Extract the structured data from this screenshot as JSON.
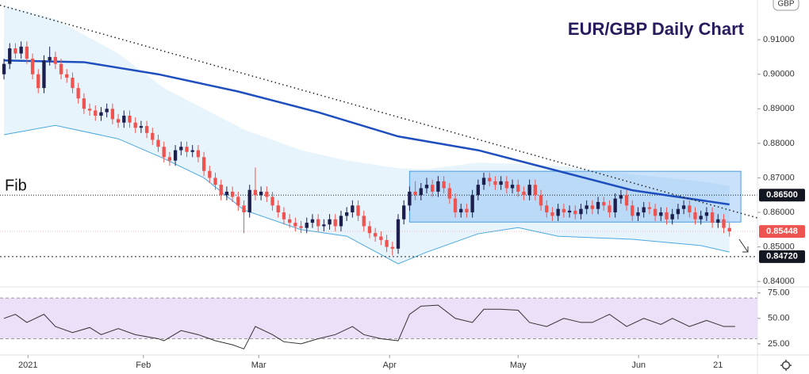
{
  "chart_data": {
    "type": "candlestick",
    "title": "EUR/GBP Daily Chart",
    "currency": "GBP",
    "annotation": "Fib",
    "up_color": "#1c1f4e",
    "down_color": "#ef5350",
    "xlim": [
      -0.7,
      131.9
    ],
    "ylim": [
      0.8389,
      0.9215
    ],
    "yticks": [
      {
        "value": 0.91,
        "label": "0.91000"
      },
      {
        "value": 0.9,
        "label": "0.90000"
      },
      {
        "value": 0.89,
        "label": "0.89000"
      },
      {
        "value": 0.88,
        "label": "0.88000"
      },
      {
        "value": 0.87,
        "label": "0.87000"
      },
      {
        "value": 0.86,
        "label": "0.86000"
      },
      {
        "value": 0.85,
        "label": "0.85000"
      },
      {
        "value": 0.84,
        "label": "0.84000"
      }
    ],
    "xticks": [
      {
        "value": 4.2,
        "label": "2021"
      },
      {
        "value": 24.4,
        "label": "Feb"
      },
      {
        "value": 44.6,
        "label": "Mar"
      },
      {
        "value": 67.5,
        "label": "Apr"
      },
      {
        "value": 90,
        "label": "May"
      },
      {
        "value": 111.1,
        "label": "Jun"
      },
      {
        "value": 125,
        "label": "21"
      }
    ],
    "series": [
      {
        "open": [
          0.9,
          0.903,
          0.9075,
          0.906,
          0.908,
          0.9045,
          0.9,
          0.896,
          0.904,
          0.905,
          0.903,
          0.9,
          0.899,
          0.896,
          0.893,
          0.89,
          0.8895,
          0.888,
          0.889,
          0.89,
          0.887,
          0.886,
          0.888,
          0.886,
          0.8845,
          0.885,
          0.883,
          0.881,
          0.879,
          0.876,
          0.875,
          0.878,
          0.879,
          0.8775,
          0.878,
          0.876,
          0.872,
          0.87,
          0.868,
          0.865,
          0.866,
          0.8645,
          0.862,
          0.86,
          0.8665,
          0.865,
          0.866,
          0.8645,
          0.862,
          0.86,
          0.858,
          0.857,
          0.856,
          0.8555,
          0.857,
          0.858,
          0.856,
          0.8565,
          0.858,
          0.856,
          0.859,
          0.86,
          0.862,
          0.859,
          0.856,
          0.854,
          0.853,
          0.852,
          0.85,
          0.8495,
          0.858,
          0.862,
          0.866,
          0.865,
          0.867,
          0.868,
          0.866,
          0.869,
          0.867,
          0.864,
          0.86,
          0.861,
          0.86,
          0.865,
          0.868,
          0.87,
          0.869,
          0.868,
          0.869,
          0.867,
          0.868,
          0.866,
          0.865,
          0.868,
          0.865,
          0.862,
          0.86,
          0.859,
          0.861,
          0.86,
          0.8605,
          0.8595,
          0.861,
          0.862,
          0.861,
          0.863,
          0.862,
          0.86,
          0.864,
          0.865,
          0.862,
          0.859,
          0.86,
          0.8615,
          0.861,
          0.859,
          0.86,
          0.858,
          0.8595,
          0.861,
          0.862,
          0.86,
          0.858,
          0.859,
          0.86,
          0.857,
          0.858,
          0.8555
        ],
        "high": [
          0.9045,
          0.909,
          0.909,
          0.9095,
          0.9095,
          0.906,
          0.9015,
          0.9055,
          0.908,
          0.9065,
          0.9045,
          0.9015,
          0.9005,
          0.8975,
          0.8945,
          0.8915,
          0.891,
          0.8905,
          0.8915,
          0.8915,
          0.8885,
          0.8895,
          0.8895,
          0.8875,
          0.8865,
          0.8865,
          0.8845,
          0.8825,
          0.8805,
          0.8775,
          0.8795,
          0.8805,
          0.8805,
          0.8795,
          0.8795,
          0.8775,
          0.8735,
          0.8715,
          0.8695,
          0.8675,
          0.8675,
          0.866,
          0.8635,
          0.868,
          0.873,
          0.8675,
          0.8675,
          0.866,
          0.8635,
          0.8615,
          0.8595,
          0.8585,
          0.8575,
          0.8585,
          0.8595,
          0.8595,
          0.858,
          0.8595,
          0.8595,
          0.8605,
          0.8615,
          0.8635,
          0.8635,
          0.8605,
          0.8575,
          0.8555,
          0.8545,
          0.8535,
          0.8515,
          0.8595,
          0.8635,
          0.8675,
          0.869,
          0.8685,
          0.87,
          0.8695,
          0.8705,
          0.8705,
          0.8685,
          0.8655,
          0.8625,
          0.8625,
          0.8665,
          0.8695,
          0.8715,
          0.8715,
          0.8705,
          0.8705,
          0.8705,
          0.8695,
          0.8695,
          0.8675,
          0.8695,
          0.8695,
          0.8665,
          0.8635,
          0.8615,
          0.8625,
          0.8625,
          0.862,
          0.862,
          0.8625,
          0.8635,
          0.8635,
          0.8645,
          0.8645,
          0.8635,
          0.8655,
          0.8665,
          0.8665,
          0.8635,
          0.8615,
          0.863,
          0.863,
          0.8625,
          0.8615,
          0.8615,
          0.861,
          0.8625,
          0.8635,
          0.8635,
          0.8615,
          0.8605,
          0.8615,
          0.8615,
          0.8595,
          0.8595,
          0.857
        ],
        "low": [
          0.8985,
          0.9015,
          0.9045,
          0.9045,
          0.903,
          0.8985,
          0.8945,
          0.8945,
          0.9025,
          0.9015,
          0.8985,
          0.8975,
          0.8945,
          0.8915,
          0.8885,
          0.888,
          0.8865,
          0.8865,
          0.8875,
          0.8855,
          0.8845,
          0.8845,
          0.8845,
          0.883,
          0.883,
          0.8815,
          0.8795,
          0.8775,
          0.8745,
          0.8735,
          0.8735,
          0.8765,
          0.876,
          0.876,
          0.8745,
          0.8705,
          0.8685,
          0.8665,
          0.8635,
          0.8635,
          0.863,
          0.8605,
          0.854,
          0.8585,
          0.8635,
          0.8635,
          0.863,
          0.8605,
          0.8585,
          0.8565,
          0.8555,
          0.8545,
          0.854,
          0.854,
          0.8555,
          0.8545,
          0.8545,
          0.855,
          0.8545,
          0.8545,
          0.8575,
          0.8585,
          0.8575,
          0.8545,
          0.8525,
          0.8515,
          0.8505,
          0.8485,
          0.8475,
          0.848,
          0.8565,
          0.8605,
          0.8635,
          0.8635,
          0.8655,
          0.8645,
          0.8645,
          0.8655,
          0.8625,
          0.8585,
          0.8585,
          0.8585,
          0.8585,
          0.8635,
          0.8665,
          0.8675,
          0.8665,
          0.8665,
          0.8655,
          0.8655,
          0.8645,
          0.8635,
          0.8635,
          0.8635,
          0.8605,
          0.8585,
          0.8575,
          0.8575,
          0.8585,
          0.8585,
          0.858,
          0.858,
          0.8595,
          0.8595,
          0.8595,
          0.8605,
          0.8585,
          0.8585,
          0.8625,
          0.8605,
          0.8575,
          0.8575,
          0.8585,
          0.8595,
          0.8575,
          0.8575,
          0.8565,
          0.8565,
          0.858,
          0.8595,
          0.8585,
          0.8565,
          0.8565,
          0.8575,
          0.8555,
          0.8555,
          0.854,
          0.853
        ],
        "close": [
          0.903,
          0.9075,
          0.906,
          0.908,
          0.9045,
          0.9,
          0.896,
          0.904,
          0.905,
          0.903,
          0.9,
          0.899,
          0.896,
          0.893,
          0.89,
          0.8895,
          0.888,
          0.889,
          0.89,
          0.887,
          0.886,
          0.888,
          0.886,
          0.8845,
          0.885,
          0.883,
          0.881,
          0.879,
          0.876,
          0.875,
          0.878,
          0.879,
          0.8775,
          0.878,
          0.876,
          0.872,
          0.87,
          0.868,
          0.865,
          0.866,
          0.8645,
          0.862,
          0.86,
          0.8665,
          0.865,
          0.866,
          0.8645,
          0.862,
          0.86,
          0.858,
          0.857,
          0.856,
          0.8555,
          0.857,
          0.858,
          0.856,
          0.8565,
          0.858,
          0.856,
          0.859,
          0.86,
          0.862,
          0.859,
          0.856,
          0.854,
          0.853,
          0.852,
          0.85,
          0.8495,
          0.858,
          0.862,
          0.866,
          0.865,
          0.867,
          0.868,
          0.866,
          0.869,
          0.867,
          0.864,
          0.86,
          0.861,
          0.86,
          0.865,
          0.868,
          0.87,
          0.869,
          0.868,
          0.869,
          0.867,
          0.868,
          0.866,
          0.865,
          0.868,
          0.865,
          0.862,
          0.86,
          0.859,
          0.861,
          0.86,
          0.8605,
          0.8595,
          0.861,
          0.862,
          0.861,
          0.863,
          0.862,
          0.86,
          0.864,
          0.865,
          0.862,
          0.859,
          0.86,
          0.8615,
          0.861,
          0.859,
          0.86,
          0.858,
          0.8595,
          0.861,
          0.862,
          0.86,
          0.858,
          0.859,
          0.86,
          0.857,
          0.858,
          0.8555,
          0.8545
        ]
      }
    ],
    "moving_average": {
      "color": "#1f4fbf",
      "x": [
        0,
        14,
        27,
        41,
        55,
        69,
        83,
        97,
        110,
        127
      ],
      "values": [
        0.904,
        0.9035,
        0.9,
        0.895,
        0.889,
        0.882,
        0.878,
        0.872,
        0.8664,
        0.8623
      ]
    },
    "band": {
      "color": "#4aa8e0",
      "x": [
        0,
        9,
        20,
        28,
        35,
        42,
        52,
        60,
        69,
        74,
        83,
        90,
        97,
        110,
        122,
        127
      ],
      "upper": [
        0.92,
        0.916,
        0.906,
        0.896,
        0.89,
        0.884,
        0.878,
        0.875,
        0.8728,
        0.8725,
        0.8744,
        0.874,
        0.8735,
        0.871,
        0.869,
        0.8676
      ],
      "lower": [
        0.8825,
        0.8852,
        0.8813,
        0.8756,
        0.87,
        0.8607,
        0.855,
        0.8531,
        0.8451,
        0.8485,
        0.8538,
        0.8556,
        0.8531,
        0.8522,
        0.8504,
        0.8485
      ]
    },
    "trendline": {
      "x": [
        -0.7,
        131.9
      ],
      "values": [
        0.92,
        0.8584
      ]
    },
    "range_box": {
      "x": [
        71,
        129
      ],
      "values": [
        0.8572,
        0.8719
      ]
    },
    "levels": [
      {
        "value": 0.865,
        "label": "0.86500",
        "style": "dotted"
      },
      {
        "value": 0.8472,
        "label": "0.84720",
        "style": "dashed"
      }
    ],
    "last_price": {
      "value": 0.85448,
      "label": "0.85448",
      "color": "#ef5350"
    },
    "rsi": {
      "color": "#333333",
      "ylim": [
        14,
        81
      ],
      "yticks": [
        {
          "value": 75,
          "label": "75.00"
        },
        {
          "value": 50,
          "label": "50.00"
        },
        {
          "value": 25,
          "label": "25.00"
        }
      ],
      "band": [
        30,
        70
      ],
      "x": [
        0,
        2,
        4,
        7,
        9,
        12,
        15,
        17,
        20,
        23,
        27,
        28,
        31,
        34,
        37,
        40,
        42,
        44,
        47,
        49,
        52,
        55,
        58,
        61,
        63,
        66,
        69,
        71,
        73,
        76,
        79,
        82,
        84,
        87,
        90,
        92,
        95,
        98,
        101,
        103,
        106,
        109,
        112,
        115,
        117,
        120,
        123,
        126,
        128
      ],
      "values": [
        50,
        54,
        46,
        54,
        42,
        36,
        41,
        34,
        40,
        34,
        30,
        28,
        38,
        34,
        28,
        24,
        20,
        42,
        34,
        27,
        25,
        30,
        34,
        42,
        34,
        30,
        28,
        54,
        62,
        63,
        50,
        46,
        59,
        59,
        58,
        46,
        42,
        50,
        46,
        46,
        54,
        42,
        50,
        44,
        50,
        42,
        48,
        42,
        42
      ]
    }
  }
}
